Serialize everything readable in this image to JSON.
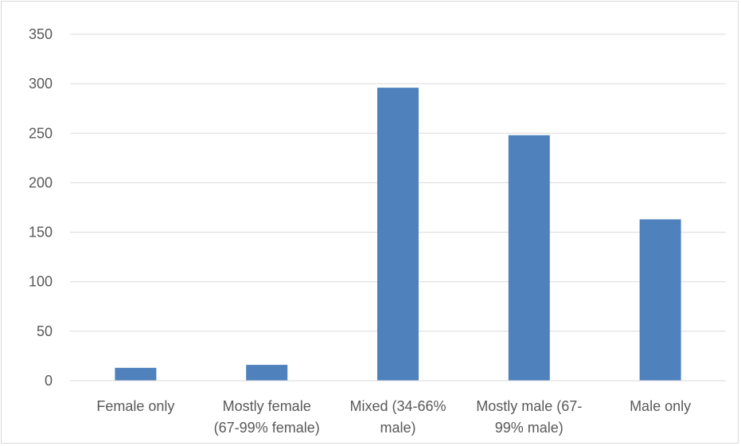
{
  "chart_data": {
    "type": "bar",
    "title": "",
    "xlabel": "",
    "ylabel": "",
    "categories": [
      [
        "Female only"
      ],
      [
        "Mostly female",
        "(67-99% female)"
      ],
      [
        "Mixed (34-66%",
        "male)"
      ],
      [
        "Mostly male (67-",
        "99% male)"
      ],
      [
        "Male only"
      ]
    ],
    "values": [
      13,
      16,
      296,
      248,
      163
    ],
    "ylim": [
      0,
      350
    ],
    "yticks": [
      0,
      50,
      100,
      150,
      200,
      250,
      300,
      350
    ],
    "grid": true,
    "legend": "none",
    "colors": {
      "bar": "#4f81bd",
      "grid": "#d9d9d9",
      "axis": "#d9d9d9",
      "text": "#595959"
    }
  }
}
